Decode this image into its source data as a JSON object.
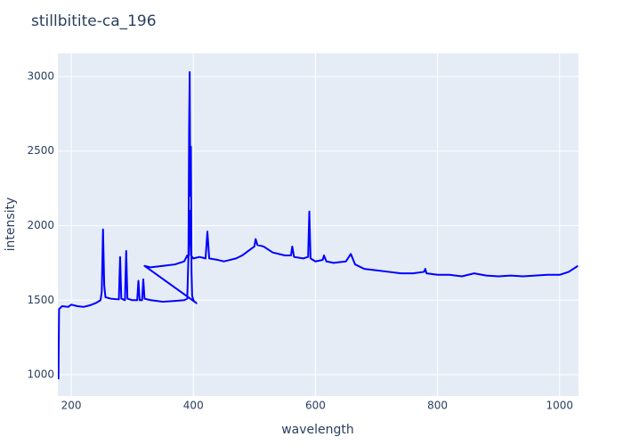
{
  "chart_data": {
    "type": "line",
    "title": "stillbitite-ca_196",
    "x_label": "wavelength",
    "y_label": "intensity",
    "x": [
      179,
      180,
      185,
      195,
      200,
      210,
      220,
      230,
      240,
      248,
      250,
      252,
      254,
      256,
      265,
      278,
      280,
      282,
      288,
      290,
      292,
      300,
      308,
      310,
      312,
      316,
      318,
      320,
      330,
      350,
      370,
      385,
      390,
      392,
      393,
      394,
      395,
      396,
      397,
      398,
      400,
      402,
      405,
      395,
      320,
      330,
      350,
      370,
      385,
      390,
      392,
      394,
      396,
      400,
      410,
      420,
      423,
      426,
      440,
      450,
      460,
      470,
      480,
      490,
      500,
      502,
      505,
      515,
      530,
      550,
      560,
      562,
      565,
      580,
      588,
      590,
      592,
      600,
      612,
      614,
      618,
      630,
      650,
      658,
      665,
      680,
      700,
      720,
      740,
      760,
      778,
      780,
      782,
      800,
      820,
      840,
      860,
      880,
      900,
      920,
      940,
      960,
      980,
      1000,
      1015,
      1030
    ],
    "series": [
      {
        "name": "intensity",
        "color": "#0000ff",
        "values": [
          970,
          1440,
          1460,
          1455,
          1470,
          1460,
          1455,
          1465,
          1480,
          1500,
          1560,
          1975,
          1600,
          1520,
          1510,
          1505,
          1790,
          1510,
          1500,
          1830,
          1510,
          1500,
          1500,
          1630,
          1500,
          1500,
          1640,
          1510,
          1500,
          1490,
          1495,
          1500,
          1510,
          1800,
          2630,
          3030,
          2200,
          2530,
          1700,
          1530,
          1500,
          1490,
          1480,
          1510,
          1730,
          1720,
          1730,
          1740,
          1760,
          1800,
          1780,
          2100,
          1800,
          1780,
          1790,
          1780,
          1960,
          1780,
          1770,
          1760,
          1770,
          1780,
          1800,
          1830,
          1860,
          1910,
          1870,
          1860,
          1820,
          1800,
          1800,
          1860,
          1790,
          1780,
          1790,
          2095,
          1780,
          1760,
          1770,
          1800,
          1760,
          1750,
          1760,
          1810,
          1740,
          1710,
          1700,
          1690,
          1680,
          1680,
          1690,
          1710,
          1680,
          1670,
          1670,
          1660,
          1680,
          1665,
          1660,
          1665,
          1660,
          1665,
          1670,
          1670,
          1690,
          1730
        ]
      }
    ],
    "xlim": [
      178,
      1031
    ],
    "ylim": [
      857,
      3155
    ],
    "xticks": [
      200,
      400,
      600,
      800,
      1000
    ],
    "yticks": [
      1000,
      1500,
      2000,
      2500,
      3000
    ],
    "grid": true
  }
}
